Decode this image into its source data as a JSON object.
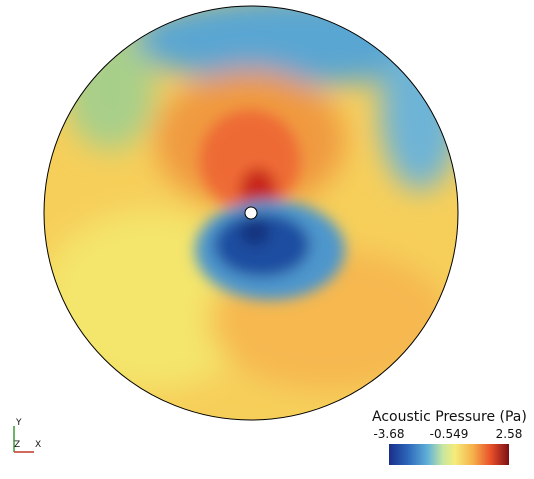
{
  "legend": {
    "title": "Acoustic Pressure (Pa)",
    "ticks": [
      -3.68,
      -0.549,
      2.58
    ]
  },
  "axes": {
    "y": "Y",
    "z": "Z",
    "x": "X"
  }
}
